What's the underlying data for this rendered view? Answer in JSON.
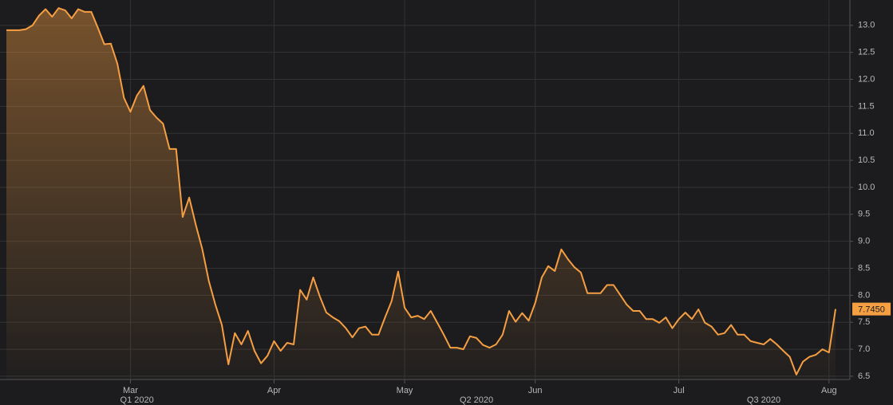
{
  "chart_data": {
    "type": "area-line",
    "color": "#f59e42",
    "categories": [
      null,
      null,
      null,
      null,
      null,
      null,
      null,
      null,
      null,
      null,
      null,
      null,
      null,
      null,
      null,
      null,
      null,
      null,
      null,
      "Mar",
      null,
      null,
      null,
      null,
      null,
      null,
      null,
      null,
      null,
      null,
      null,
      null,
      null,
      null,
      null,
      null,
      null,
      null,
      null,
      null,
      null,
      "Apr",
      null,
      null,
      null,
      null,
      null,
      null,
      null,
      null,
      null,
      null,
      null,
      null,
      null,
      null,
      null,
      null,
      null,
      null,
      null,
      "May",
      null,
      null,
      null,
      null,
      null,
      null,
      null,
      null,
      null,
      null,
      null,
      null,
      null,
      null,
      null,
      null,
      null,
      null,
      null,
      "Jun",
      null,
      null,
      null,
      null,
      null,
      null,
      null,
      null,
      null,
      null,
      null,
      null,
      null,
      null,
      null,
      null,
      null,
      null,
      null,
      null,
      null,
      "Jul",
      null,
      null,
      null,
      null,
      null,
      null,
      null,
      null,
      null,
      null,
      null,
      null,
      null,
      null,
      null,
      null,
      null,
      null,
      null,
      null,
      null,
      null,
      "Aug",
      null
    ],
    "quarter_labels": [
      null,
      null,
      null,
      null,
      null,
      null,
      null,
      null,
      null,
      null,
      null,
      null,
      null,
      null,
      null,
      null,
      null,
      null,
      null,
      null,
      "Q1 2020",
      null,
      null,
      null,
      null,
      null,
      null,
      null,
      null,
      null,
      null,
      null,
      null,
      null,
      null,
      null,
      null,
      null,
      null,
      null,
      null,
      null,
      null,
      null,
      null,
      null,
      null,
      null,
      null,
      null,
      null,
      null,
      null,
      null,
      null,
      null,
      null,
      null,
      null,
      null,
      null,
      null,
      null,
      null,
      null,
      null,
      null,
      null,
      null,
      null,
      null,
      null,
      "Q2 2020",
      null,
      null,
      null,
      null,
      null,
      null,
      null,
      null,
      null,
      null,
      null,
      null,
      null,
      null,
      null,
      null,
      null,
      null,
      null,
      null,
      null,
      null,
      null,
      null,
      null,
      null,
      null,
      null,
      null,
      null,
      null,
      null,
      null,
      null,
      null,
      null,
      null,
      null,
      null,
      null,
      null,
      null,
      null,
      "Q3 2020",
      null,
      null,
      null,
      null,
      null,
      null,
      null,
      null,
      null,
      null,
      null
    ],
    "values": [
      12.91,
      12.91,
      12.91,
      12.93,
      13.0,
      13.18,
      13.3,
      13.16,
      13.32,
      13.28,
      13.13,
      13.3,
      13.25,
      13.25,
      12.96,
      12.65,
      12.66,
      12.29,
      11.66,
      11.4,
      11.7,
      11.88,
      11.43,
      11.29,
      11.18,
      10.71,
      10.71,
      9.45,
      9.81,
      9.31,
      8.86,
      8.27,
      7.83,
      7.45,
      6.72,
      7.3,
      7.09,
      7.34,
      6.97,
      6.74,
      6.88,
      7.15,
      6.97,
      7.12,
      7.09,
      8.1,
      7.92,
      8.33,
      7.98,
      7.68,
      7.59,
      7.52,
      7.39,
      7.22,
      7.39,
      7.42,
      7.27,
      7.27,
      7.59,
      7.89,
      8.44,
      7.77,
      7.59,
      7.62,
      7.56,
      7.71,
      7.49,
      7.27,
      7.03,
      7.03,
      7.0,
      7.24,
      7.21,
      7.08,
      7.03,
      7.09,
      7.27,
      7.71,
      7.51,
      7.67,
      7.53,
      7.86,
      8.33,
      8.54,
      8.45,
      8.85,
      8.67,
      8.52,
      8.42,
      8.04,
      8.04,
      8.04,
      8.19,
      8.19,
      8.01,
      7.83,
      7.71,
      7.71,
      7.56,
      7.56,
      7.49,
      7.59,
      7.39,
      7.56,
      7.68,
      7.56,
      7.74,
      7.49,
      7.42,
      7.27,
      7.3,
      7.45,
      7.27,
      7.27,
      7.15,
      7.12,
      7.09,
      7.19,
      7.09,
      6.97,
      6.86,
      6.53,
      6.77,
      6.86,
      6.9,
      7.0,
      6.94,
      7.745
    ],
    "last_value_label": "7.7450",
    "ylim": [
      6.44,
      13.47
    ],
    "yticks": [
      6.5,
      {
        "value": 7,
        "label": "7.0"
      },
      7.5,
      {
        "value": 8,
        "label": "8.0"
      },
      8.5,
      {
        "value": 9,
        "label": "9.0"
      },
      9.5,
      {
        "value": 10,
        "label": "10.0"
      },
      10.5,
      {
        "value": 11,
        "label": "11.0"
      },
      11.5,
      {
        "value": 12,
        "label": "12.0"
      },
      12.5,
      {
        "value": 13,
        "label": "13.0"
      }
    ],
    "grid": true
  }
}
